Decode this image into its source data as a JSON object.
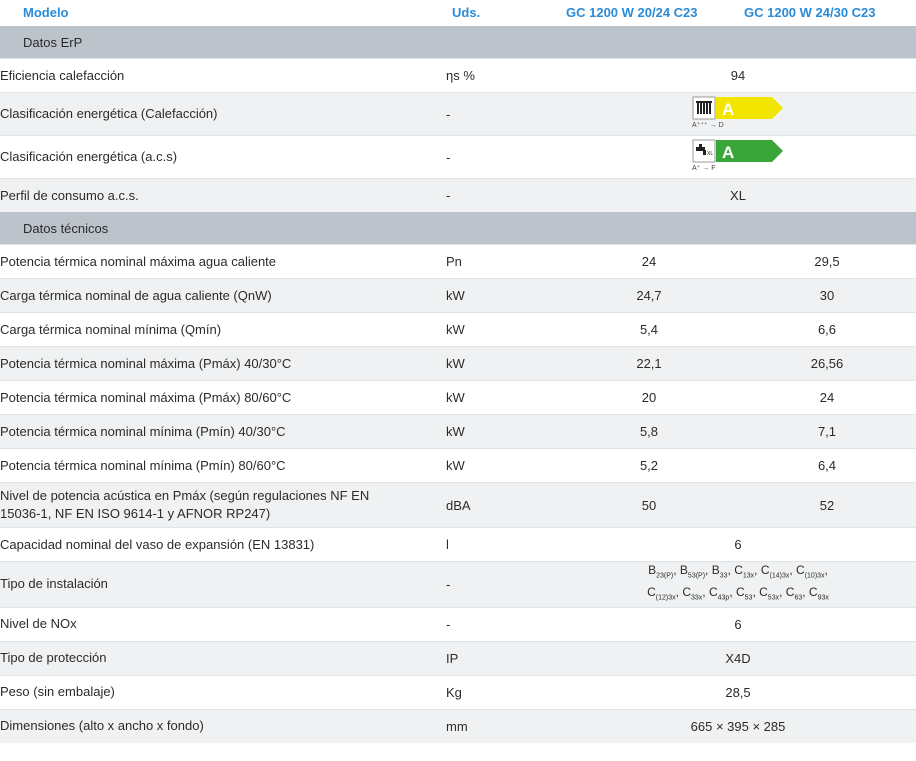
{
  "header": {
    "model": "Modelo",
    "units": "Uds.",
    "model_1": "GC 1200 W 20/24 C23",
    "model_2": "GC 1200 W 24/30 C23"
  },
  "sections": {
    "erp": "Datos ErP",
    "tech": "Datos técnicos"
  },
  "erp_rows": [
    {
      "label": "Eficiencia calefacción",
      "unit": "ηs %",
      "value": "94"
    },
    {
      "label": "Clasificación energética (Calefacción)",
      "unit": "-",
      "grade": "A",
      "range": "A⁺⁺⁺ → D",
      "badge_color": "#f2e600"
    },
    {
      "label": "Clasificación energética (a.c.s)",
      "unit": "-",
      "grade": "A",
      "range": "A⁺ → F",
      "badge_color": "#3aa63a"
    },
    {
      "label": "Perfil de consumo a.c.s.",
      "unit": "-",
      "value": "XL"
    }
  ],
  "tech_rows": [
    {
      "label": "Potencia térmica nominal máxima agua caliente",
      "unit": "Pn",
      "v1": "24",
      "v2": "29,5"
    },
    {
      "label": "Carga térmica nominal de agua caliente (QnW)",
      "unit": "kW",
      "v1": "24,7",
      "v2": "30"
    },
    {
      "label": "Carga térmica nominal mínima (Qmín)",
      "unit": "kW",
      "v1": "5,4",
      "v2": "6,6"
    },
    {
      "label": "Potencia térmica nominal máxima (Pmáx) 40/30°C",
      "unit": "kW",
      "v1": "22,1",
      "v2": "26,56"
    },
    {
      "label": "Potencia térmica nominal máxima (Pmáx) 80/60°C",
      "unit": "kW",
      "v1": "20",
      "v2": "24"
    },
    {
      "label": "Potencia térmica nominal mínima (Pmín) 40/30°C",
      "unit": "kW",
      "v1": "5,8",
      "v2": "7,1"
    },
    {
      "label": "Potencia térmica nominal mínima (Pmín) 80/60°C",
      "unit": "kW",
      "v1": "5,2",
      "v2": "6,4"
    },
    {
      "label_1": "Nivel de potencia acústica en Pmáx (según regulaciones NF EN",
      "label_2": "15036-1, NF EN ISO 9614-1 y AFNOR RP247)",
      "unit": "dBA",
      "v1": "50",
      "v2": "52"
    },
    {
      "label": "Capacidad nominal del vaso de expansión (EN 13831)",
      "unit": "l",
      "value": "6"
    },
    {
      "label": "Tipo de instalación",
      "unit": "-"
    },
    {
      "label": "Nivel de NOx",
      "unit": "-",
      "value": "6"
    },
    {
      "label": "Tipo de protección",
      "unit": "IP",
      "value": "X4D"
    },
    {
      "label": "Peso (sin embalaje)",
      "unit": "Kg",
      "value": "28,5"
    },
    {
      "label": "Dimensiones (alto x ancho x fondo)",
      "unit": "mm",
      "value": "665 × 395 × 285"
    }
  ],
  "install": {
    "line1": [
      {
        "b": "B",
        "s": "23(P)"
      },
      {
        "b": "B",
        "s": "53(P)"
      },
      {
        "b": "B",
        "s": "33"
      },
      {
        "b": "C",
        "s": "13x"
      },
      {
        "b": "C",
        "s": "(14)3x"
      },
      {
        "b": "C",
        "s": "(10)3x"
      }
    ],
    "line2": [
      {
        "b": "C",
        "s": "(12)3x"
      },
      {
        "b": "C",
        "s": "33x"
      },
      {
        "b": "C",
        "s": "43p"
      },
      {
        "b": "C",
        "s": "53"
      },
      {
        "b": "C",
        "s": "53x"
      },
      {
        "b": "C",
        "s": "63"
      },
      {
        "b": "C",
        "s": "93x"
      }
    ]
  },
  "colors": {
    "header_text": "#2a8bd8",
    "section_bg": "#bcc3cb",
    "stripe_bg": "#eff1f2"
  }
}
